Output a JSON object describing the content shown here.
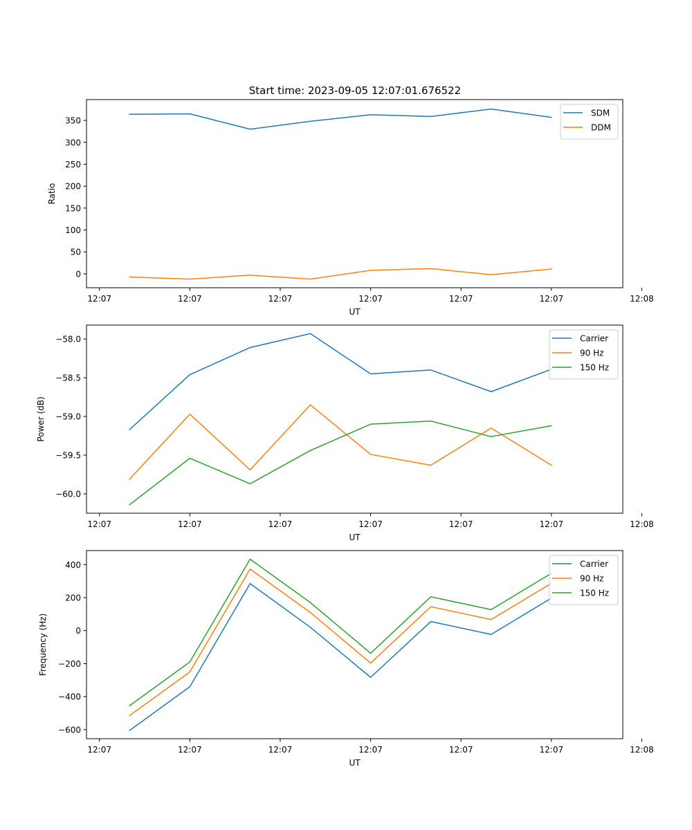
{
  "figure": {
    "title": "Start time: 2023-09-05 12:07:01.676522"
  },
  "chart_data": [
    {
      "type": "line",
      "title": "Start time: 2023-09-05 12:07:01.676522",
      "xlabel": "UT",
      "ylabel": "Ratio",
      "x": [
        1,
        2,
        3,
        4,
        5,
        6,
        7,
        8
      ],
      "xlim": [
        0.285,
        9.185
      ],
      "x_ticks": [
        0.5,
        2.0,
        3.5,
        5.0,
        6.5,
        8.0,
        9.5
      ],
      "x_tick_labels": [
        "12:07",
        "12:07",
        "12:07",
        "12:07",
        "12:07",
        "12:07",
        "12:08"
      ],
      "ylim": [
        -31.7,
        397.5
      ],
      "y_ticks": [
        0,
        50,
        100,
        150,
        200,
        250,
        300,
        350
      ],
      "y_tick_labels": [
        "0",
        "50",
        "100",
        "150",
        "200",
        "250",
        "300",
        "350"
      ],
      "legend_position": "top-right",
      "series": [
        {
          "name": "SDM",
          "color": "#1f77b4",
          "values": [
            364,
            365,
            330,
            348,
            363,
            359,
            376,
            357
          ]
        },
        {
          "name": "DDM",
          "color": "#ff7f0e",
          "values": [
            -7,
            -12,
            -3,
            -12,
            8,
            12,
            -2,
            11
          ]
        }
      ]
    },
    {
      "type": "line",
      "xlabel": "UT",
      "ylabel": "Power (dB)",
      "x": [
        1,
        2,
        3,
        4,
        5,
        6,
        7,
        8
      ],
      "xlim": [
        0.285,
        9.185
      ],
      "x_ticks": [
        0.5,
        2.0,
        3.5,
        5.0,
        6.5,
        8.0,
        9.5
      ],
      "x_tick_labels": [
        "12:07",
        "12:07",
        "12:07",
        "12:07",
        "12:07",
        "12:07",
        "12:08"
      ],
      "ylim": [
        -60.25,
        -57.82
      ],
      "y_ticks": [
        -60.0,
        -59.5,
        -59.0,
        -58.5,
        -58.0
      ],
      "y_tick_labels": [
        "−60.0",
        "−59.5",
        "−59.0",
        "−58.5",
        "−58.0"
      ],
      "legend_position": "top-right",
      "series": [
        {
          "name": "Carrier",
          "color": "#1f77b4",
          "values": [
            -59.17,
            -58.46,
            -58.11,
            -57.93,
            -58.45,
            -58.4,
            -58.68,
            -58.39
          ]
        },
        {
          "name": "90 Hz",
          "color": "#ff7f0e",
          "values": [
            -59.81,
            -58.97,
            -59.69,
            -58.85,
            -59.49,
            -59.63,
            -59.15,
            -59.63
          ]
        },
        {
          "name": "150 Hz",
          "color": "#2ca02c",
          "values": [
            -60.14,
            -59.54,
            -59.87,
            -59.44,
            -59.1,
            -59.06,
            -59.26,
            -59.12
          ]
        }
      ]
    },
    {
      "type": "line",
      "xlabel": "UT",
      "ylabel": "Frequency (Hz)",
      "x": [
        1,
        2,
        3,
        4,
        5,
        6,
        7,
        8
      ],
      "xlim": [
        0.285,
        9.185
      ],
      "x_ticks": [
        0.5,
        2.0,
        3.5,
        5.0,
        6.5,
        8.0,
        9.5
      ],
      "x_tick_labels": [
        "12:07",
        "12:07",
        "12:07",
        "12:07",
        "12:07",
        "12:07",
        "12:08"
      ],
      "ylim": [
        -655,
        485
      ],
      "y_ticks": [
        -600,
        -400,
        -200,
        0,
        200,
        400
      ],
      "y_tick_labels": [
        "−600",
        "−400",
        "−200",
        "0",
        "200",
        "400"
      ],
      "legend_position": "top-right",
      "series": [
        {
          "name": "Carrier",
          "color": "#1f77b4",
          "values": [
            -605,
            -340,
            285,
            20,
            -283,
            55,
            -23,
            197
          ]
        },
        {
          "name": "90 Hz",
          "color": "#ff7f0e",
          "values": [
            -515,
            -250,
            373,
            110,
            -197,
            145,
            67,
            287
          ]
        },
        {
          "name": "150 Hz",
          "color": "#2ca02c",
          "values": [
            -455,
            -190,
            433,
            170,
            -137,
            205,
            127,
            347
          ]
        }
      ]
    }
  ]
}
